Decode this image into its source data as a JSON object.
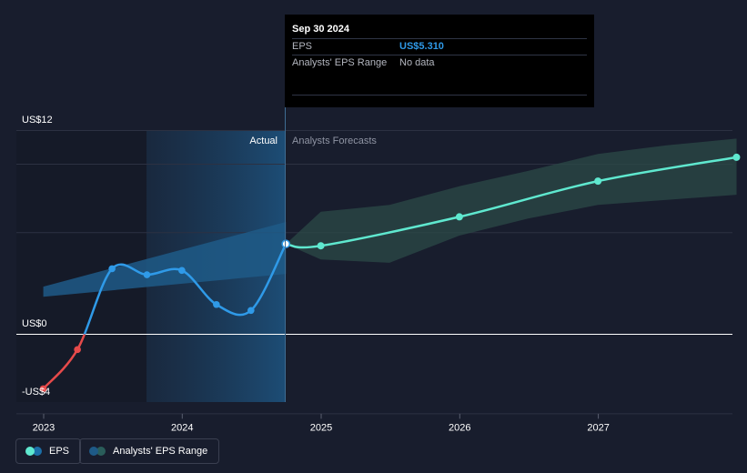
{
  "tooltip": {
    "date": "Sep 30 2024",
    "rows": [
      {
        "label": "EPS",
        "value": "US$5.310"
      },
      {
        "label": "Analysts' EPS Range",
        "value": "No data"
      }
    ]
  },
  "regions": {
    "actual": "Actual",
    "forecast": "Analysts Forecasts"
  },
  "legend": {
    "eps": "EPS",
    "range": "Analysts' EPS Range"
  },
  "colors": {
    "background": "#181d2d",
    "eps_positive": "#2f9ae8",
    "eps_negative": "#e64a4a",
    "forecast_line": "#5fe8cf",
    "forecast_band": "#2b4a47",
    "actual_band": "#1e5a87"
  },
  "chart_data": {
    "type": "line",
    "y_tick_labels": [
      "US$12",
      "US$0",
      "-US$4"
    ],
    "x_tick_labels": [
      "2023",
      "2024",
      "2025",
      "2026",
      "2027"
    ],
    "ylim": [
      -4,
      12
    ],
    "series": [
      {
        "name": "EPS",
        "points": [
          {
            "date": "2022-12-31",
            "value": -3.2
          },
          {
            "date": "2023-03-31",
            "value": -0.9
          },
          {
            "date": "2023-06-30",
            "value": 3.85
          },
          {
            "date": "2023-09-30",
            "value": 3.5
          },
          {
            "date": "2023-12-31",
            "value": 3.75
          },
          {
            "date": "2024-03-31",
            "value": 1.75
          },
          {
            "date": "2024-06-30",
            "value": 1.4
          },
          {
            "date": "2024-09-30",
            "value": 5.31
          }
        ]
      },
      {
        "name": "Analysts Forecasts",
        "points": [
          {
            "date": "2024-09-30",
            "value": 5.31
          },
          {
            "date": "2024-12-31",
            "value": 5.2
          },
          {
            "date": "2025-12-31",
            "value": 6.9
          },
          {
            "date": "2026-12-31",
            "value": 9.0
          },
          {
            "date": "2027-12-31",
            "value": 10.4
          }
        ]
      }
    ],
    "actual_range": {
      "dates": [
        "2022-12-31",
        "2024-09-30"
      ],
      "low": [
        2.2,
        3.55
      ],
      "high": [
        2.8,
        6.6
      ]
    },
    "forecast_range": {
      "dates": [
        "2024-09-30",
        "2024-12-31",
        "2025-06-30",
        "2025-12-31",
        "2026-06-30",
        "2026-12-31",
        "2027-06-30",
        "2027-12-31"
      ],
      "low": [
        5.31,
        4.4,
        4.2,
        5.8,
        6.8,
        7.6,
        7.9,
        8.2
      ],
      "high": [
        5.31,
        7.2,
        7.6,
        8.7,
        9.6,
        10.6,
        11.1,
        11.5
      ]
    }
  }
}
